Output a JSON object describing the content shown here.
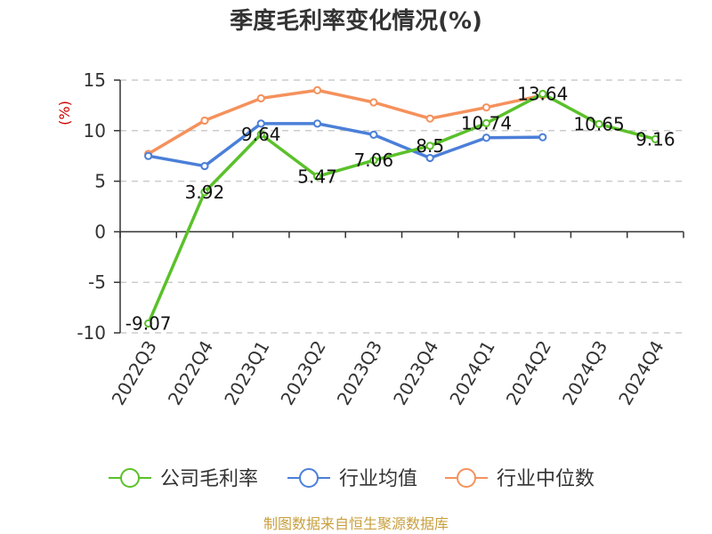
{
  "title": "季度毛利率变化情况(%)",
  "footer": "制图数据来自恒生聚源数据库",
  "colors": {
    "company": "#5ac12a",
    "industry_avg": "#4b7fd8",
    "industry_median": "#f5915c",
    "unit": "#cc0000",
    "footer": "#c8a040"
  },
  "chart_data": {
    "type": "line",
    "title": "季度毛利率变化情况(%)",
    "ylabel": "(%)",
    "xlabel": "",
    "ylim": [
      -10,
      15
    ],
    "yticks": [
      15,
      10,
      5,
      0,
      -5,
      -10
    ],
    "grid": true,
    "legend_position": "bottom",
    "categories": [
      "2022Q3",
      "2022Q4",
      "2023Q1",
      "2023Q2",
      "2023Q3",
      "2023Q4",
      "2024Q1",
      "2024Q2",
      "2024Q3",
      "2024Q4"
    ],
    "series": [
      {
        "name": "公司毛利率",
        "color": "#5ac12a",
        "values": [
          -9.07,
          3.92,
          9.64,
          5.47,
          7.06,
          8.5,
          10.74,
          13.64,
          10.65,
          9.16
        ],
        "data_labels": [
          "-9.07",
          "3.92",
          "9.64",
          "5.47",
          "7.06",
          "8.5",
          "10.74",
          "13.64",
          "10.65",
          "9.16"
        ]
      },
      {
        "name": "行业均值",
        "color": "#4b7fd8",
        "values": [
          7.5,
          6.5,
          10.7,
          10.7,
          9.6,
          7.3,
          9.3,
          9.35,
          null,
          null
        ]
      },
      {
        "name": "行业中位数",
        "color": "#f5915c",
        "values": [
          7.7,
          11.0,
          13.2,
          14.0,
          12.8,
          11.2,
          12.3,
          13.5,
          null,
          null
        ]
      }
    ]
  }
}
